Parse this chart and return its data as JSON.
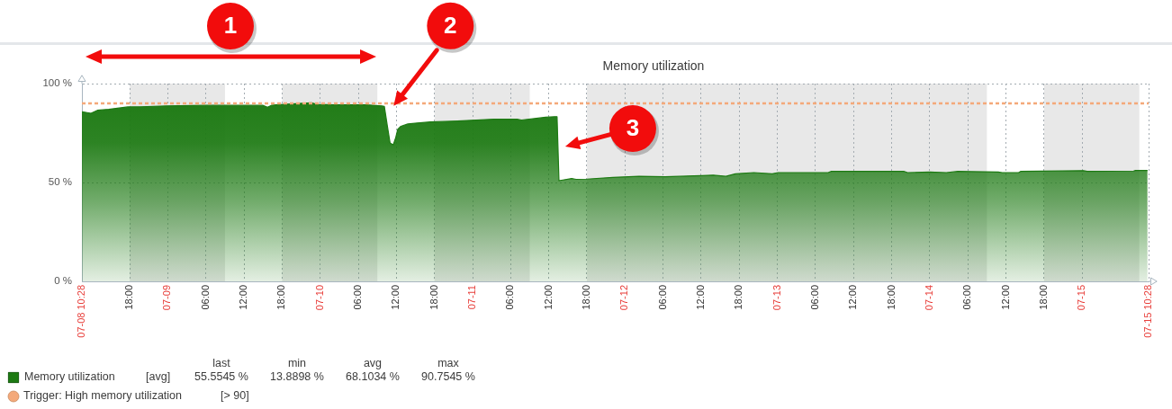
{
  "chart_data": {
    "type": "area",
    "title": "Memory utilization",
    "x": [
      "--07-08T10:28",
      "--07-08T11:54",
      "--07-08T12:54",
      "--07-08T14:42",
      "--07-08T17:42",
      "--07-08T19:42",
      "--07-08T23:48",
      "--07-09T05:54",
      "--07-09T10:54",
      "--07-09T15:00",
      "--07-09T15:42",
      "--07-09T16:18",
      "--07-09T17:00",
      "--07-09T22:36",
      "--07-09T23:30",
      "--07-10T02:06",
      "--07-10T07:12",
      "--07-10T09:42",
      "--07-10T10:06",
      "--07-10T10:36",
      "--07-10T11:00",
      "--07-10T11:30",
      "--07-10T11:54",
      "--07-10T12:12",
      "--07-10T12:42",
      "--07-10T13:48",
      "--07-10T15:18",
      "--07-10T17:18",
      "--07-10T22:24",
      "--07-11T03:24",
      "--07-11T07:00",
      "--07-11T07:42",
      "--07-11T11:30",
      "--07-11T12:54",
      "--07-11T13:18",
      "--07-11T13:36",
      "--07-11T15:36",
      "--07-11T16:18",
      "--07-11T18:00",
      "--07-11T22:06",
      "--07-12T02:12",
      "--07-12T06:18",
      "--07-12T08:36",
      "--07-12T12:06",
      "--07-12T13:54",
      "--07-12T15:54",
      "--07-12T17:24",
      "--07-12T20:18",
      "--07-12T23:12",
      "--07-13T00:06",
      "--07-13T08:00",
      "--07-13T08:30",
      "--07-13T19:54",
      "--07-13T20:30",
      "--07-14T00:00",
      "--07-14T02:36",
      "--07-14T04:24",
      "--07-14T10:48",
      "--07-14T11:24",
      "--07-14T14:00",
      "--07-14T14:18",
      "--07-15T00:12",
      "--07-15T00:48",
      "--07-15T08:06",
      "--07-15T08:24",
      "--07-15T10:18"
    ],
    "series": [
      {
        "name": "Memory utilization",
        "color": "#1d7a13",
        "values": [
          85.8,
          85.0,
          86.5,
          87.0,
          88.2,
          88.3,
          88.7,
          89.0,
          89.0,
          89.0,
          88.0,
          89.0,
          89.3,
          90.3,
          89.5,
          89.3,
          89.3,
          88.7,
          88.5,
          78.0,
          70.0,
          69.0,
          72.8,
          76.8,
          78.4,
          79.6,
          80.1,
          80.6,
          81.2,
          82.0,
          82.0,
          81.6,
          83.0,
          83.3,
          83.3,
          50.9,
          52.0,
          51.6,
          51.7,
          52.6,
          53.1,
          52.9,
          53.1,
          53.5,
          53.7,
          53.1,
          54.4,
          55.0,
          54.4,
          55.0,
          55.0,
          55.6,
          55.6,
          55.0,
          55.3,
          55.0,
          55.6,
          55.3,
          55.0,
          55.0,
          55.6,
          56.0,
          55.6,
          55.8,
          56.1,
          56.1
        ]
      }
    ],
    "xlim": [
      "--07-08T10:28",
      "--07-15T10:28"
    ],
    "xticks": [
      {
        "value": "--07-08T10:28",
        "label": "07-08 10:28"
      },
      {
        "value": "--07-08T18:00",
        "label": "18:00"
      },
      {
        "value": "--07-09",
        "label": "07-09"
      },
      {
        "value": "--07-09T06:00",
        "label": "06:00"
      },
      {
        "value": "--07-09T12:00",
        "label": "12:00"
      },
      {
        "value": "--07-09T18:00",
        "label": "18:00"
      },
      {
        "value": "--07-10",
        "label": "07-10"
      },
      {
        "value": "--07-10T06:00",
        "label": "06:00"
      },
      {
        "value": "--07-10T12:00",
        "label": "12:00"
      },
      {
        "value": "--07-10T18:00",
        "label": "18:00"
      },
      {
        "value": "--07-11",
        "label": "07-11"
      },
      {
        "value": "--07-11T06:00",
        "label": "06:00"
      },
      {
        "value": "--07-11T12:00",
        "label": "12:00"
      },
      {
        "value": "--07-11T18:00",
        "label": "18:00"
      },
      {
        "value": "--07-12",
        "label": "07-12"
      },
      {
        "value": "--07-12T06:00",
        "label": "06:00"
      },
      {
        "value": "--07-12T12:00",
        "label": "12:00"
      },
      {
        "value": "--07-12T18:00",
        "label": "18:00"
      },
      {
        "value": "--07-13",
        "label": "07-13"
      },
      {
        "value": "--07-13T06:00",
        "label": "06:00"
      },
      {
        "value": "--07-13T12:00",
        "label": "12:00"
      },
      {
        "value": "--07-13T18:00",
        "label": "18:00"
      },
      {
        "value": "--07-14",
        "label": "07-14"
      },
      {
        "value": "--07-14T06:00",
        "label": "06:00"
      },
      {
        "value": "--07-14T12:00",
        "label": "12:00"
      },
      {
        "value": "--07-14T18:00",
        "label": "18:00"
      },
      {
        "value": "--07-15",
        "label": "07-15"
      },
      {
        "value": "--07-15T10:28",
        "label": "07-15 10:28"
      }
    ],
    "ylim": [
      0,
      100
    ],
    "yticks": [
      {
        "value": 0,
        "label": "0 %"
      },
      {
        "value": 50,
        "label": "50 %"
      },
      {
        "value": 100,
        "label": "100 %"
      }
    ],
    "grid": true,
    "legend": "bottom left",
    "ref_lines": [
      {
        "axis": "y",
        "value": 90,
        "label": "Trigger: High memory utilization",
        "color": "#f4a97a",
        "line_style": "dashed"
      }
    ],
    "bands": [
      {
        "axis": "x",
        "from": "--07-08T18:00",
        "to": "--07-09T09:00",
        "color": "#e8e8e8"
      },
      {
        "axis": "x",
        "from": "--07-09T18:00",
        "to": "--07-10T09:00",
        "color": "#e8e8e8"
      },
      {
        "axis": "x",
        "from": "--07-10T18:00",
        "to": "--07-11T09:00",
        "color": "#e8e8e8"
      },
      {
        "axis": "x",
        "from": "--07-11T18:00",
        "to": "--07-14T09:00",
        "color": "#e8e8e8"
      },
      {
        "axis": "x",
        "from": "--07-14T18:00",
        "to": "--07-15T09:00",
        "color": "#e8e8e8"
      }
    ],
    "annotations": [
      "1",
      {
        "text": "2",
        "x": "--07-10T12:42",
        "y": 92.8
      },
      {
        "text": "3",
        "x": "--07-11T15:52",
        "y": 70.3
      },
      "[avg]",
      "last",
      "min",
      "avg",
      "max",
      "55.5545 %",
      "13.8898 %",
      "68.1034 %",
      "90.7545 %",
      "[> 90]"
    ]
  }
}
